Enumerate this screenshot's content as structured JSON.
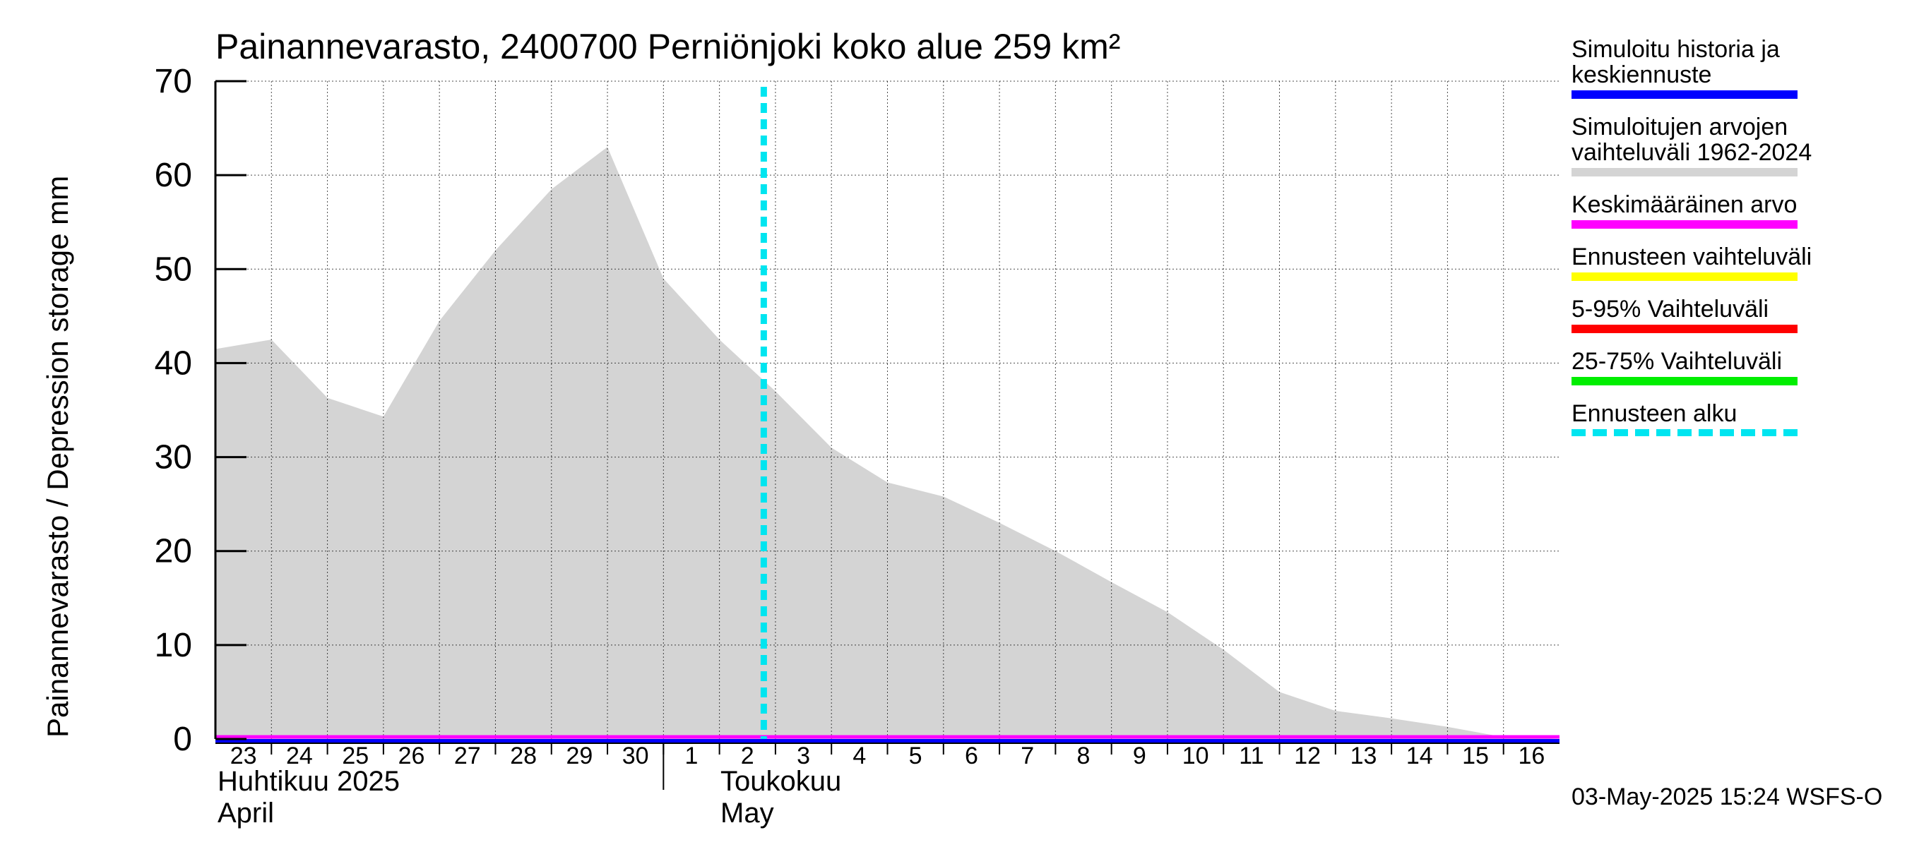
{
  "chart_data": {
    "type": "area",
    "title": "Painannevarasto, 2400700 Perniönjoki koko alue 259 km²",
    "ylabel": "Painannevarasto / Depression storage    mm",
    "ylim": [
      0,
      70
    ],
    "yticks": [
      0,
      10,
      20,
      30,
      40,
      50,
      60,
      70
    ],
    "grid": true,
    "x_dates": [
      "2025-04-23",
      "2025-04-24",
      "2025-04-25",
      "2025-04-26",
      "2025-04-27",
      "2025-04-28",
      "2025-04-29",
      "2025-04-30",
      "2025-05-01",
      "2025-05-02",
      "2025-05-03",
      "2025-05-04",
      "2025-05-05",
      "2025-05-06",
      "2025-05-07",
      "2025-05-08",
      "2025-05-09",
      "2025-05-10",
      "2025-05-11",
      "2025-05-12",
      "2025-05-13",
      "2025-05-14",
      "2025-05-15",
      "2025-05-16"
    ],
    "x_tick_labels": [
      "23",
      "24",
      "25",
      "26",
      "27",
      "28",
      "29",
      "30",
      "1",
      "2",
      "3",
      "4",
      "5",
      "6",
      "7",
      "8",
      "9",
      "10",
      "11",
      "12",
      "13",
      "14",
      "15",
      "16"
    ],
    "month_labels": [
      {
        "fi": "Huhtikuu  2025",
        "en": "April"
      },
      {
        "fi": "Toukokuu",
        "en": "May"
      }
    ],
    "range_band": {
      "name": "Simuloitujen arvojen vaihteluväli 1962-2024",
      "color": "#d4d4d4",
      "x": [
        "2025-04-23",
        "2025-04-24",
        "2025-04-25",
        "2025-04-26",
        "2025-04-27",
        "2025-04-28",
        "2025-04-29",
        "2025-04-30",
        "2025-05-01",
        "2025-05-02",
        "2025-05-03",
        "2025-05-04",
        "2025-05-05",
        "2025-05-06",
        "2025-05-07",
        "2025-05-08",
        "2025-05-09",
        "2025-05-10",
        "2025-05-11",
        "2025-05-12",
        "2025-05-13",
        "2025-05-14",
        "2025-05-15",
        "2025-05-16",
        "2025-05-17"
      ],
      "upper": [
        41.5,
        42.5,
        36.3,
        34.3,
        44.5,
        52,
        58.5,
        63,
        49,
        42.5,
        37,
        31,
        27.3,
        25.8,
        23,
        20,
        16.7,
        13.5,
        9.5,
        5,
        3,
        2.2,
        1.3,
        0.2,
        0
      ],
      "lower": [
        0,
        0,
        0,
        0,
        0,
        0,
        0,
        0,
        0,
        0,
        0,
        0,
        0,
        0,
        0,
        0,
        0,
        0,
        0,
        0,
        0,
        0,
        0,
        0,
        0
      ]
    },
    "series": [
      {
        "name": "Simuloitu historia ja keskiennuste",
        "color": "#0000ff",
        "value": 0
      },
      {
        "name": "Keskimääräinen arvo",
        "color": "#ff00ff",
        "value": 0
      }
    ],
    "forecast_start": {
      "name": "Ennusteen alku",
      "date": "2025-05-02T19:00",
      "color": "#00e5f0"
    }
  },
  "legend": [
    {
      "label": "Simuloitu historia ja\nkeskiennuste",
      "color": "#0000ff",
      "style": "solid"
    },
    {
      "label": "Simuloitujen arvojen\nvaihteluväli 1962-2024",
      "color": "#d4d4d4",
      "style": "solid"
    },
    {
      "label": "Keskimääräinen arvo",
      "color": "#ff00ff",
      "style": "solid"
    },
    {
      "label": "Ennusteen vaihteluväli",
      "color": "#ffff00",
      "style": "solid"
    },
    {
      "label": "5-95% Vaihteluväli",
      "color": "#ff0000",
      "style": "solid"
    },
    {
      "label": "25-75% Vaihteluväli",
      "color": "#00ee00",
      "style": "solid"
    },
    {
      "label": "Ennusteen alku",
      "color": "#00e5f0",
      "style": "dashed"
    }
  ],
  "footer": {
    "timestamp": "03-May-2025 15:24 WSFS-O"
  }
}
